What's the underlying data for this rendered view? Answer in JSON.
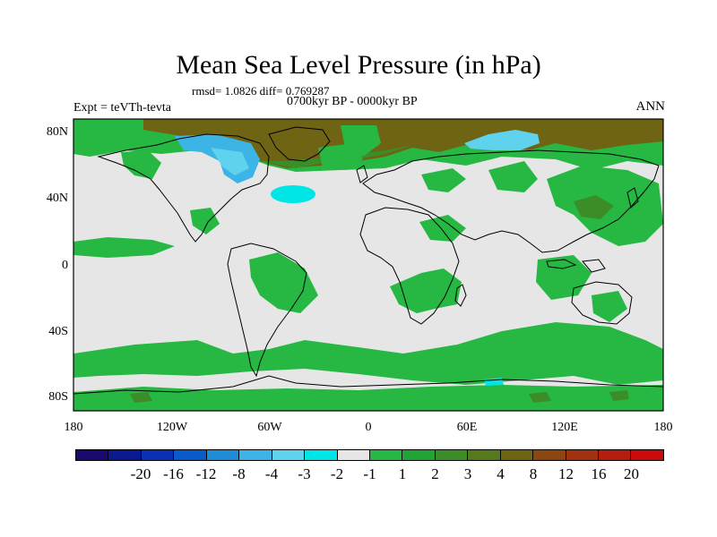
{
  "figure": {
    "title": "Mean Sea Level Pressure (in hPa)",
    "stats": "rmsd= 1.0826 diff= 0.769287",
    "period": "0700kyr BP - 0000kyr BP",
    "experiment": "Expt = teVTh-tevta",
    "season": "ANN"
  },
  "axes": {
    "lat_ticks": [
      "80N",
      "40N",
      "0",
      "40S",
      "80S"
    ],
    "lon_ticks": [
      "180",
      "120W",
      "60W",
      "0",
      "60E",
      "120E",
      "180"
    ]
  },
  "colorbar": {
    "colors": [
      "#1a0a6e",
      "#0a1a8e",
      "#0a32b4",
      "#0a5ac8",
      "#1e8cd6",
      "#3cb4e6",
      "#5fd2ee",
      "#00e6e6",
      "#e6e6e6",
      "#27b844",
      "#22a434",
      "#3c8c28",
      "#557a1e",
      "#6e6414",
      "#8c460f",
      "#a0320f",
      "#b41e0f",
      "#c80a0a"
    ],
    "labels": [
      "-20",
      "-16",
      "-12",
      "-8",
      "-4",
      "-3",
      "-2",
      "-1",
      "1",
      "2",
      "3",
      "4",
      "8",
      "12",
      "16",
      "20"
    ]
  },
  "map_colors": {
    "background": "#e6e6e6",
    "positive_small": "#27b844",
    "positive_mid": "#3c8c28",
    "positive_large": "#6e6414",
    "negative_small": "#00e6e6",
    "negative_mid": "#3cb4e6",
    "coastline": "#000000"
  }
}
